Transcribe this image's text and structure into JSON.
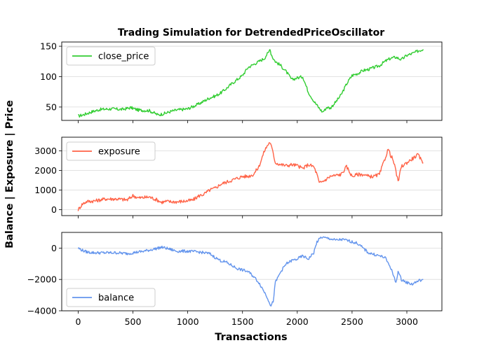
{
  "chart_data": {
    "type": "line",
    "title": "Trading Simulation for DetrendedPriceOscillator",
    "xlabel": "Transactions",
    "ylabel": "Balance | Exposure | Price",
    "xlim": [
      -150,
      3320
    ],
    "x_ticks": [
      0,
      500,
      1000,
      1500,
      2000,
      2500,
      3000
    ],
    "x_tick_labels": [
      "0",
      "500",
      "1000",
      "1500",
      "2000",
      "2500",
      "3000"
    ],
    "grid": "horizontal",
    "panels": [
      {
        "name": "price-panel",
        "ylim": [
          28,
          157
        ],
        "y_ticks": [
          50,
          100,
          150
        ],
        "y_tick_labels": [
          "50",
          "100",
          "150"
        ],
        "legend_position": "upper-left",
        "series": {
          "name": "close_price",
          "color": "#32cd32",
          "x": [
            0,
            60,
            120,
            200,
            300,
            400,
            480,
            550,
            650,
            730,
            800,
            850,
            900,
            1000,
            1100,
            1200,
            1250,
            1300,
            1350,
            1400,
            1450,
            1500,
            1550,
            1600,
            1650,
            1700,
            1720,
            1740,
            1750,
            1760,
            1780,
            1800,
            1850,
            1900,
            1950,
            2000,
            2050,
            2100,
            2150,
            2200,
            2230,
            2250,
            2270,
            2300,
            2350,
            2400,
            2450,
            2500,
            2550,
            2600,
            2650,
            2700,
            2750,
            2800,
            2850,
            2900,
            2950,
            3000,
            3050,
            3100,
            3150
          ],
          "y": [
            35,
            38,
            42,
            46,
            47,
            46,
            49,
            45,
            44,
            37,
            40,
            43,
            45,
            47,
            55,
            65,
            68,
            73,
            80,
            88,
            95,
            102,
            115,
            120,
            125,
            130,
            136,
            140,
            147,
            138,
            130,
            125,
            118,
            108,
            95,
            98,
            100,
            75,
            60,
            48,
            42,
            45,
            50,
            48,
            58,
            70,
            88,
            102,
            105,
            110,
            112,
            115,
            118,
            125,
            130,
            132,
            128,
            135,
            138,
            142,
            145
          ]
        }
      },
      {
        "name": "exposure-panel",
        "ylim": [
          -300,
          3700
        ],
        "y_ticks": [
          0,
          1000,
          2000,
          3000
        ],
        "y_tick_labels": [
          "0",
          "1000",
          "2000",
          "3000"
        ],
        "legend_position": "upper-left",
        "series": {
          "name": "exposure",
          "color": "#ff6347",
          "x": [
            0,
            40,
            80,
            150,
            250,
            350,
            450,
            500,
            550,
            650,
            720,
            760,
            800,
            900,
            1000,
            1050,
            1100,
            1150,
            1200,
            1250,
            1300,
            1350,
            1400,
            1450,
            1500,
            1550,
            1600,
            1650,
            1700,
            1730,
            1750,
            1770,
            1800,
            1850,
            1900,
            1950,
            2000,
            2050,
            2100,
            2150,
            2180,
            2200,
            2250,
            2300,
            2350,
            2400,
            2450,
            2500,
            2550,
            2600,
            2650,
            2700,
            2750,
            2800,
            2830,
            2850,
            2870,
            2900,
            2920,
            2950,
            3000,
            3050,
            3100,
            3150
          ],
          "y": [
            0,
            300,
            420,
            450,
            550,
            550,
            500,
            720,
            600,
            650,
            500,
            380,
            420,
            400,
            450,
            500,
            700,
            800,
            1000,
            1100,
            1300,
            1400,
            1500,
            1600,
            1700,
            1700,
            1800,
            2200,
            3000,
            3300,
            3450,
            3100,
            2400,
            2300,
            2250,
            2300,
            2250,
            2100,
            2300,
            2200,
            1800,
            1350,
            1500,
            1700,
            1750,
            1800,
            2200,
            1700,
            1800,
            1800,
            1700,
            1700,
            1800,
            2600,
            3100,
            2800,
            2600,
            2000,
            1400,
            2200,
            2400,
            2600,
            2800,
            2400
          ]
        }
      },
      {
        "name": "balance-panel",
        "ylim": [
          -4000,
          1000
        ],
        "y_ticks": [
          -4000,
          -2000,
          0
        ],
        "y_tick_labels": [
          "−4000",
          "−2000",
          "0"
        ],
        "legend_position": "lower-left",
        "series": {
          "name": "balance",
          "color": "#6495ed",
          "x": [
            0,
            40,
            80,
            150,
            250,
            350,
            450,
            500,
            600,
            700,
            760,
            800,
            900,
            1000,
            1100,
            1200,
            1250,
            1300,
            1350,
            1400,
            1450,
            1500,
            1550,
            1600,
            1650,
            1700,
            1730,
            1760,
            1780,
            1800,
            1850,
            1900,
            1950,
            2000,
            2050,
            2100,
            2150,
            2180,
            2220,
            2250,
            2300,
            2350,
            2400,
            2450,
            2500,
            2550,
            2600,
            2650,
            2700,
            2750,
            2800,
            2850,
            2880,
            2900,
            2920,
            2950,
            3000,
            3050,
            3100,
            3150
          ],
          "y": [
            0,
            -150,
            -250,
            -300,
            -300,
            -300,
            -350,
            -300,
            -200,
            -50,
            50,
            0,
            -200,
            -200,
            -250,
            -350,
            -600,
            -800,
            -900,
            -1100,
            -1300,
            -1400,
            -1500,
            -1800,
            -2200,
            -2800,
            -3200,
            -3700,
            -3400,
            -2200,
            -1500,
            -1000,
            -800,
            -700,
            -500,
            -700,
            -300,
            400,
            700,
            650,
            600,
            500,
            550,
            500,
            400,
            300,
            0,
            -300,
            -400,
            -500,
            -600,
            -1200,
            -1800,
            -2200,
            -1500,
            -2000,
            -2200,
            -2300,
            -2100,
            -2000
          ]
        }
      }
    ]
  }
}
